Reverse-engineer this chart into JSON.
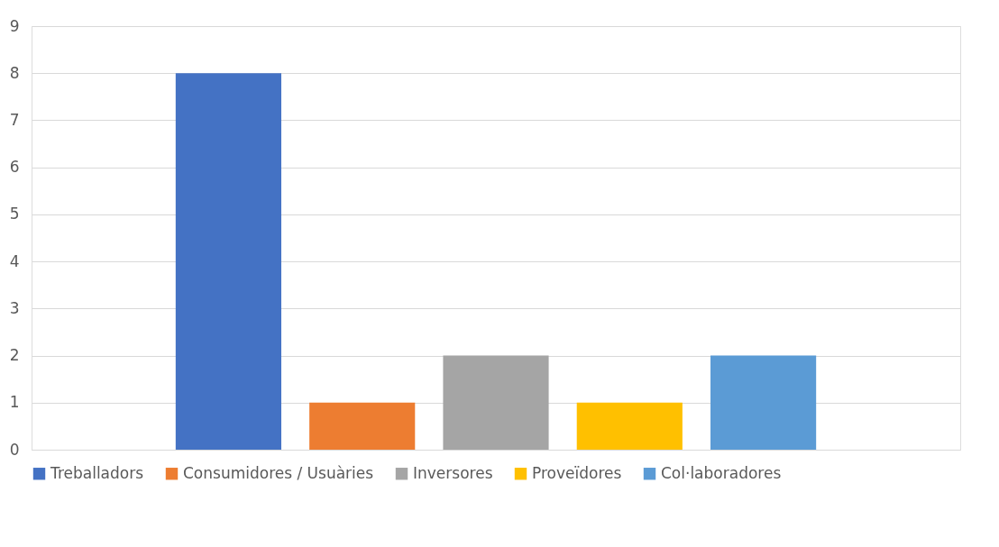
{
  "chart_data": {
    "type": "bar",
    "categories": [
      null
    ],
    "series": [
      {
        "name": "Treballadors",
        "color": "#4472c4",
        "values": [
          8
        ]
      },
      {
        "name": "Consumidores / Usuàries",
        "color": "#ed7d31",
        "values": [
          1
        ]
      },
      {
        "name": "Inversores",
        "color": "#a5a5a5",
        "values": [
          2
        ]
      },
      {
        "name": "Proveïdores",
        "color": "#ffc000",
        "values": [
          1
        ]
      },
      {
        "name": "Col·laboradores",
        "color": "#5b9bd5",
        "values": [
          2
        ]
      }
    ],
    "ylim": [
      0,
      9
    ],
    "yticks": [
      0,
      1,
      2,
      3,
      4,
      5,
      6,
      7,
      8,
      9
    ],
    "grid": "y",
    "legend": "bottom",
    "tick_labels": "y"
  }
}
